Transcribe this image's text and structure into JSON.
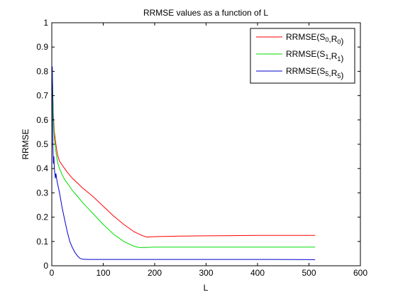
{
  "chart_data": {
    "type": "line",
    "title": "RRMSE values as a function of L",
    "xlabel": "L",
    "ylabel": "RRMSE",
    "xlim": [
      0,
      600
    ],
    "ylim": [
      0,
      1
    ],
    "xticks": [
      0,
      100,
      200,
      300,
      400,
      500,
      600
    ],
    "yticks": [
      0,
      0.1,
      0.2,
      0.3,
      0.4,
      0.5,
      0.6,
      0.7,
      0.8,
      0.9,
      1
    ],
    "xtick_labels": [
      "0",
      "100",
      "200",
      "300",
      "400",
      "500",
      "600"
    ],
    "ytick_labels": [
      "0",
      "0.1",
      "0.2",
      "0.3",
      "0.4",
      "0.5",
      "0.6",
      "0.7",
      "0.8",
      "0.9",
      "1"
    ],
    "grid": false,
    "legend_position": "top-right",
    "series": [
      {
        "legend": {
          "base": "RRMSE(S",
          "sub1": "0",
          "mid": ",R",
          "sub2": "0",
          "end": ")"
        },
        "color": "#ff0000",
        "x": [
          1,
          3,
          5,
          8,
          10,
          12,
          15,
          20,
          25,
          30,
          40,
          50,
          60,
          80,
          100,
          120,
          140,
          160,
          175,
          185,
          200,
          250,
          300,
          350,
          400,
          450,
          512
        ],
        "y": [
          0.8,
          0.62,
          0.55,
          0.5,
          0.47,
          0.45,
          0.43,
          0.415,
          0.4,
          0.385,
          0.36,
          0.34,
          0.32,
          0.285,
          0.245,
          0.205,
          0.17,
          0.14,
          0.125,
          0.118,
          0.12,
          0.122,
          0.123,
          0.124,
          0.125,
          0.125,
          0.125
        ]
      },
      {
        "legend": {
          "base": "RRMSE(S",
          "sub1": "1",
          "mid": ",R",
          "sub2": "1",
          "end": ")"
        },
        "color": "#00dd00",
        "x": [
          1,
          3,
          5,
          8,
          10,
          12,
          15,
          20,
          25,
          30,
          40,
          50,
          60,
          80,
          100,
          120,
          140,
          160,
          170,
          180,
          200,
          250,
          300,
          350,
          400,
          450,
          512
        ],
        "y": [
          0.8,
          0.6,
          0.52,
          0.47,
          0.44,
          0.42,
          0.4,
          0.375,
          0.355,
          0.34,
          0.31,
          0.285,
          0.26,
          0.215,
          0.17,
          0.13,
          0.1,
          0.08,
          0.075,
          0.075,
          0.077,
          0.077,
          0.077,
          0.077,
          0.077,
          0.077,
          0.077
        ]
      },
      {
        "legend": {
          "base": "RRMSE(S",
          "sub1": "5",
          "mid": ",R",
          "sub2": "5",
          "end": ")"
        },
        "color": "#0000cc",
        "x": [
          1,
          2,
          3,
          4,
          5,
          6,
          7,
          8,
          10,
          12,
          15,
          20,
          25,
          30,
          35,
          40,
          45,
          50,
          55,
          60,
          70,
          100,
          200,
          300,
          400,
          512
        ],
        "y": [
          0.82,
          0.5,
          0.42,
          0.45,
          0.4,
          0.38,
          0.36,
          0.38,
          0.35,
          0.33,
          0.3,
          0.24,
          0.19,
          0.14,
          0.1,
          0.075,
          0.055,
          0.04,
          0.03,
          0.027,
          0.026,
          0.026,
          0.026,
          0.026,
          0.026,
          0.025
        ]
      }
    ]
  }
}
